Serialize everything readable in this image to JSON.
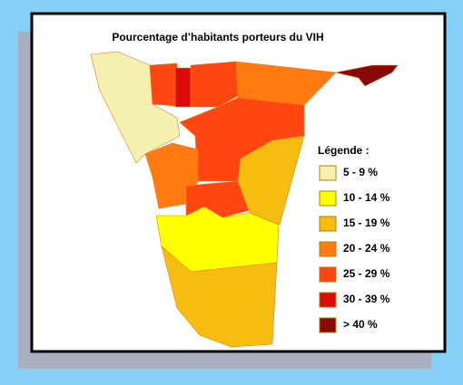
{
  "title": "Pourcentage d’habitants porteurs du VIH",
  "legend": {
    "title": "Légende :",
    "items": [
      {
        "label": "5 - 9 %",
        "color": "#f5efb0"
      },
      {
        "label": "10 - 14 %",
        "color": "#ffff00"
      },
      {
        "label": "15 - 19 %",
        "color": "#f7bc10"
      },
      {
        "label": "20 - 24 %",
        "color": "#ff7a10"
      },
      {
        "label": "25 - 29 %",
        "color": "#ff4510"
      },
      {
        "label": "30 - 39 %",
        "color": "#dd0a0a"
      },
      {
        "label": "> 40 %",
        "color": "#8a0808"
      }
    ]
  }
}
